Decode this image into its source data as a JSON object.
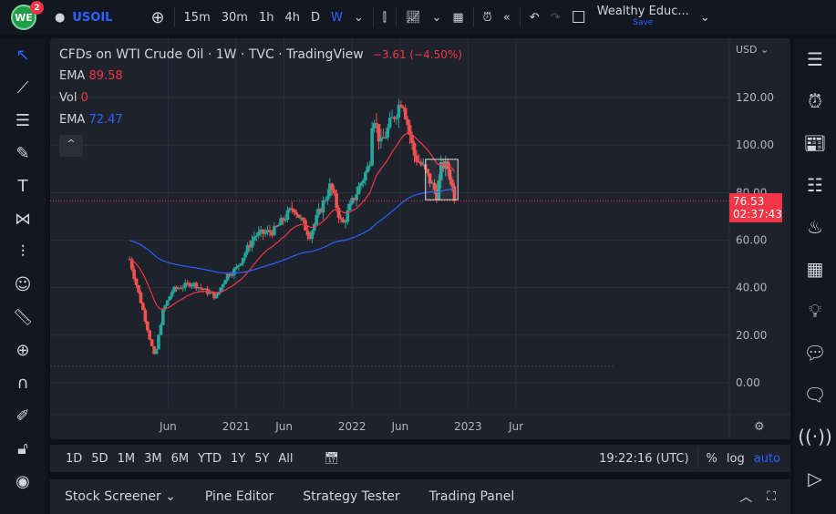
{
  "header": {
    "logo": "WE",
    "notifications": "2",
    "symbol": "USOIL",
    "intervals": [
      "15m",
      "30m",
      "1h",
      "4h",
      "D",
      "W"
    ],
    "active_interval": "W",
    "layout_name": "Wealthy Educ...",
    "save_label": "Save"
  },
  "legend": {
    "title": "CFDs on WTI Crude Oil · 1W · TVC · TradingView",
    "change": "−3.61 (−4.50%)",
    "ema1_label": "EMA",
    "ema1_value": "89.58",
    "vol_label": "Vol",
    "vol_value": "0",
    "ema2_label": "EMA",
    "ema2_value": "72.47",
    "collapse": "^"
  },
  "price_axis": {
    "currency": "USD",
    "ticks": [
      "120.00",
      "100.00",
      "80.00",
      "60.00",
      "40.00",
      "20.00",
      "0.00"
    ],
    "last_price": "76.53",
    "countdown": "02:37:43"
  },
  "time_axis": {
    "ticks": [
      "Jun",
      "2021",
      "Jun",
      "2022",
      "Jun",
      "2023",
      "Jur"
    ]
  },
  "bottom": {
    "ranges": [
      "1D",
      "5D",
      "1M",
      "3M",
      "6M",
      "YTD",
      "1Y",
      "5Y",
      "All"
    ],
    "clock": "19:22:16 (UTC)",
    "percent": "%",
    "log": "log",
    "auto": "auto"
  },
  "panel": {
    "tabs": [
      "Stock Screener",
      "Pine Editor",
      "Strategy Tester",
      "Trading Panel"
    ]
  },
  "colors": {
    "up": "#26a69a",
    "down": "#ef5350",
    "ema_fast": "#f23645",
    "ema_slow": "#2962ff",
    "bg": "#1e222d"
  },
  "chart_data": {
    "type": "candlestick",
    "symbol": "USOIL",
    "timeframe": "1W",
    "ylim": [
      -5,
      135
    ],
    "price_path": [
      [
        "2020-02-01",
        52
      ],
      [
        "2020-03-15",
        30
      ],
      [
        "2020-04-20",
        10
      ],
      [
        "2020-05-15",
        30
      ],
      [
        "2020-06-15",
        39
      ],
      [
        "2020-08-15",
        42
      ],
      [
        "2020-10-30",
        36
      ],
      [
        "2020-12-01",
        45
      ],
      [
        "2021-01-01",
        48
      ],
      [
        "2021-03-01",
        62
      ],
      [
        "2021-05-01",
        64
      ],
      [
        "2021-07-01",
        74
      ],
      [
        "2021-08-20",
        62
      ],
      [
        "2021-10-25",
        83
      ],
      [
        "2021-12-01",
        66
      ],
      [
        "2022-01-01",
        76
      ],
      [
        "2022-02-25",
        92
      ],
      [
        "2022-03-07",
        115
      ],
      [
        "2022-04-01",
        100
      ],
      [
        "2022-06-08",
        120
      ],
      [
        "2022-07-15",
        96
      ],
      [
        "2022-08-15",
        90
      ],
      [
        "2022-09-25",
        79
      ],
      [
        "2022-10-10",
        92
      ],
      [
        "2022-11-01",
        90
      ],
      [
        "2022-11-20",
        76.53
      ]
    ],
    "ema_fast_last": 89.58,
    "ema_slow_last": 72.47,
    "drawing_rectangle": {
      "from": "2022-08-20",
      "to": "2022-11-30",
      "top": 94,
      "bottom": 77
    }
  }
}
